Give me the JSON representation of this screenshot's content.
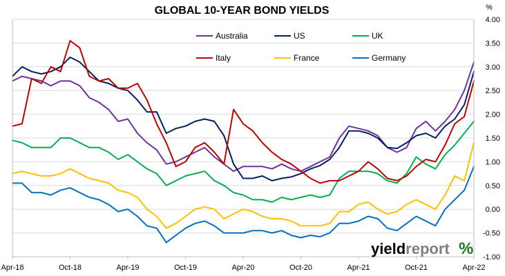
{
  "chart_data": {
    "type": "line",
    "title": "GLOBAL 10-YEAR BOND YIELDS",
    "y_unit": "%",
    "ylim": [
      -1.0,
      4.0
    ],
    "y_ticks": [
      "-1.00",
      "-0.50",
      "0.00",
      "0.50",
      "1.00",
      "1.50",
      "2.00",
      "2.50",
      "3.00",
      "3.50",
      "4.00"
    ],
    "x_ticks": [
      "Apr-18",
      "Oct-18",
      "Apr-19",
      "Oct-19",
      "Apr-20",
      "Oct-20",
      "Apr-21",
      "Oct-21",
      "Apr-22"
    ],
    "grid": "horizontal",
    "legend_position": "top-center",
    "x": [
      "2018-04",
      "2018-05",
      "2018-06",
      "2018-07",
      "2018-08",
      "2018-09",
      "2018-10",
      "2018-11",
      "2018-12",
      "2019-01",
      "2019-02",
      "2019-03",
      "2019-04",
      "2019-05",
      "2019-06",
      "2019-07",
      "2019-08",
      "2019-09",
      "2019-10",
      "2019-11",
      "2019-12",
      "2020-01",
      "2020-02",
      "2020-03",
      "2020-04",
      "2020-05",
      "2020-06",
      "2020-07",
      "2020-08",
      "2020-09",
      "2020-10",
      "2020-11",
      "2020-12",
      "2021-01",
      "2021-02",
      "2021-03",
      "2021-04",
      "2021-05",
      "2021-06",
      "2021-07",
      "2021-08",
      "2021-09",
      "2021-10",
      "2021-11",
      "2021-12",
      "2022-01",
      "2022-02",
      "2022-03",
      "2022-04"
    ],
    "series": [
      {
        "name": "Australia",
        "color": "#7030a0",
        "values": [
          2.7,
          2.8,
          2.75,
          2.7,
          2.6,
          2.7,
          2.7,
          2.6,
          2.35,
          2.25,
          2.1,
          1.85,
          1.9,
          1.6,
          1.4,
          1.25,
          0.95,
          1.0,
          1.1,
          1.2,
          1.3,
          1.1,
          0.95,
          0.8,
          0.9,
          0.9,
          0.9,
          0.85,
          0.95,
          0.85,
          0.8,
          0.9,
          1.0,
          1.1,
          1.5,
          1.75,
          1.7,
          1.65,
          1.55,
          1.3,
          1.2,
          1.3,
          1.7,
          1.85,
          1.65,
          1.85,
          2.1,
          2.5,
          3.1
        ]
      },
      {
        "name": "US",
        "color": "#002060",
        "values": [
          2.8,
          3.0,
          2.9,
          2.85,
          2.9,
          3.0,
          3.2,
          3.1,
          2.9,
          2.7,
          2.65,
          2.55,
          2.5,
          2.3,
          2.05,
          2.05,
          1.6,
          1.7,
          1.75,
          1.85,
          1.9,
          1.85,
          1.55,
          0.95,
          0.65,
          0.65,
          0.7,
          0.6,
          0.65,
          0.68,
          0.75,
          0.85,
          0.92,
          1.05,
          1.3,
          1.65,
          1.65,
          1.6,
          1.5,
          1.3,
          1.28,
          1.4,
          1.55,
          1.6,
          1.5,
          1.75,
          1.9,
          2.2,
          2.9
        ]
      },
      {
        "name": "UK",
        "color": "#00b050",
        "values": [
          1.45,
          1.4,
          1.3,
          1.3,
          1.3,
          1.5,
          1.5,
          1.4,
          1.3,
          1.3,
          1.2,
          1.05,
          1.15,
          1.0,
          0.85,
          0.75,
          0.5,
          0.6,
          0.7,
          0.75,
          0.8,
          0.6,
          0.5,
          0.35,
          0.3,
          0.2,
          0.2,
          0.15,
          0.25,
          0.2,
          0.25,
          0.3,
          0.25,
          0.3,
          0.65,
          0.8,
          0.8,
          0.8,
          0.75,
          0.6,
          0.55,
          0.75,
          1.1,
          0.95,
          0.85,
          1.15,
          1.35,
          1.6,
          1.85
        ]
      },
      {
        "name": "Italy",
        "color": "#c00000",
        "values": [
          1.75,
          1.8,
          2.75,
          2.65,
          3.0,
          2.9,
          3.55,
          3.4,
          2.8,
          2.7,
          2.75,
          2.55,
          2.55,
          2.65,
          2.3,
          1.8,
          1.4,
          0.9,
          1.0,
          1.3,
          1.4,
          1.2,
          0.95,
          2.1,
          1.8,
          1.65,
          1.4,
          1.2,
          1.05,
          0.95,
          0.8,
          0.65,
          0.55,
          0.6,
          0.6,
          0.7,
          0.8,
          1.0,
          0.85,
          0.65,
          0.6,
          0.7,
          0.9,
          1.05,
          1.0,
          1.35,
          1.8,
          1.95,
          2.7
        ]
      },
      {
        "name": "France",
        "color": "#ffc000",
        "values": [
          0.75,
          0.8,
          0.75,
          0.7,
          0.7,
          0.75,
          0.85,
          0.75,
          0.65,
          0.6,
          0.55,
          0.4,
          0.35,
          0.25,
          0.0,
          -0.15,
          -0.4,
          -0.3,
          -0.15,
          0.0,
          0.05,
          0.0,
          -0.2,
          -0.1,
          0.0,
          -0.05,
          -0.15,
          -0.2,
          -0.2,
          -0.25,
          -0.35,
          -0.35,
          -0.35,
          -0.3,
          -0.05,
          -0.05,
          0.1,
          0.15,
          0.0,
          -0.1,
          -0.05,
          0.1,
          0.2,
          0.1,
          0.0,
          0.3,
          0.7,
          0.6,
          1.4
        ]
      },
      {
        "name": "Germany",
        "color": "#0070c0",
        "values": [
          0.55,
          0.55,
          0.35,
          0.35,
          0.3,
          0.4,
          0.45,
          0.35,
          0.25,
          0.2,
          0.1,
          -0.05,
          0.0,
          -0.15,
          -0.35,
          -0.4,
          -0.7,
          -0.55,
          -0.4,
          -0.3,
          -0.25,
          -0.35,
          -0.5,
          -0.5,
          -0.5,
          -0.45,
          -0.45,
          -0.5,
          -0.45,
          -0.55,
          -0.6,
          -0.55,
          -0.58,
          -0.5,
          -0.3,
          -0.3,
          -0.25,
          -0.15,
          -0.2,
          -0.4,
          -0.45,
          -0.3,
          -0.15,
          -0.25,
          -0.35,
          0.0,
          0.2,
          0.4,
          0.9
        ]
      }
    ]
  },
  "brand": {
    "name_left": "yield",
    "name_right": "report",
    "percent_symbol": "%"
  }
}
